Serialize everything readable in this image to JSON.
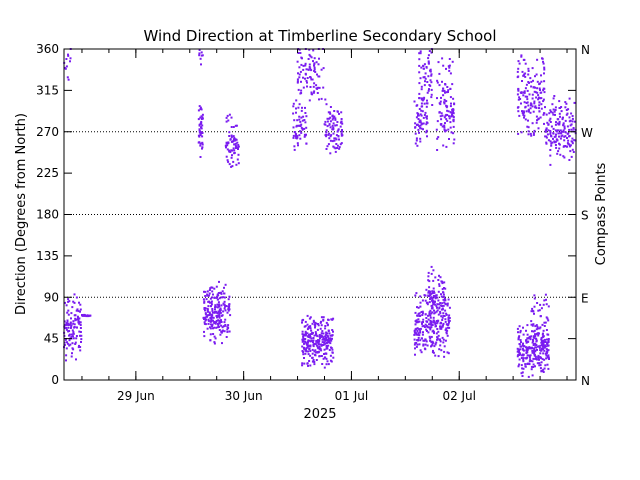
{
  "chart_data": {
    "type": "scatter",
    "title": "Wind Direction at Timberline Secondary School",
    "ylabel": "Direction (Degrees from North)",
    "xlabel": "2025",
    "y2label": "Compass Points",
    "ylim": [
      0,
      360
    ],
    "yticks": [
      0,
      45,
      90,
      135,
      180,
      225,
      270,
      315,
      360
    ],
    "compass_points": [
      {
        "label": "N",
        "value": 0
      },
      {
        "label": "E",
        "value": 90
      },
      {
        "label": "S",
        "value": 180
      },
      {
        "label": "W",
        "value": 270
      },
      {
        "label": "N",
        "value": 360
      }
    ],
    "reference_lines": [
      90,
      180,
      270
    ],
    "xlim": [
      "2025-06-28 08:00",
      "2025-07-03 02:00"
    ],
    "xticks": [
      {
        "label": "29 Jun",
        "value": "2025-06-29 00:00"
      },
      {
        "label": "30 Jun",
        "value": "2025-06-30 00:00"
      },
      {
        "label": "01 Jul",
        "value": "2025-07-01 00:00"
      },
      {
        "label": "02 Jul",
        "value": "2025-07-02 00:00"
      }
    ],
    "marker_color": "#7a1cf0",
    "clusters": [
      {
        "start": "2025-06-28 08:00",
        "end": "2025-06-28 12:00",
        "center": 58,
        "spread": 28,
        "n": 120
      },
      {
        "start": "2025-06-28 08:00",
        "end": "2025-06-28 09:30",
        "center": 345,
        "spread": 18,
        "n": 12
      },
      {
        "start": "2025-06-28 12:00",
        "end": "2025-06-28 14:00",
        "center": 70,
        "spread": 1,
        "n": 14
      },
      {
        "start": "2025-06-29 14:00",
        "end": "2025-06-29 15:00",
        "center": 270,
        "spread": 22,
        "n": 45
      },
      {
        "start": "2025-06-29 14:00",
        "end": "2025-06-29 15:00",
        "center": 352,
        "spread": 8,
        "n": 8
      },
      {
        "start": "2025-06-29 15:00",
        "end": "2025-06-29 21:00",
        "center": 72,
        "spread": 25,
        "n": 220
      },
      {
        "start": "2025-06-29 20:00",
        "end": "2025-06-29 23:00",
        "center": 258,
        "spread": 22,
        "n": 70
      },
      {
        "start": "2025-06-30 11:00",
        "end": "2025-06-30 14:00",
        "center": 278,
        "spread": 22,
        "n": 60
      },
      {
        "start": "2025-06-30 12:00",
        "end": "2025-06-30 18:00",
        "center": 330,
        "spread": 28,
        "n": 90
      },
      {
        "start": "2025-06-30 13:00",
        "end": "2025-06-30 20:00",
        "center": 42,
        "spread": 22,
        "n": 280
      },
      {
        "start": "2025-06-30 18:00",
        "end": "2025-06-30 22:00",
        "center": 275,
        "spread": 22,
        "n": 90
      },
      {
        "start": "2025-07-01 14:00",
        "end": "2025-07-01 17:00",
        "center": 280,
        "spread": 22,
        "n": 60
      },
      {
        "start": "2025-07-01 15:00",
        "end": "2025-07-01 18:00",
        "center": 330,
        "spread": 25,
        "n": 60
      },
      {
        "start": "2025-07-01 14:00",
        "end": "2025-07-01 22:00",
        "center": 60,
        "spread": 28,
        "n": 260
      },
      {
        "start": "2025-07-01 17:00",
        "end": "2025-07-01 21:00",
        "center": 95,
        "spread": 22,
        "n": 80
      },
      {
        "start": "2025-07-01 19:00",
        "end": "2025-07-01 23:00",
        "center": 300,
        "spread": 40,
        "n": 110
      },
      {
        "start": "2025-07-02 13:00",
        "end": "2025-07-02 20:00",
        "center": 32,
        "spread": 22,
        "n": 260
      },
      {
        "start": "2025-07-02 13:00",
        "end": "2025-07-02 19:00",
        "center": 310,
        "spread": 35,
        "n": 160
      },
      {
        "start": "2025-07-02 19:00",
        "end": "2025-07-03 02:00",
        "center": 272,
        "spread": 28,
        "n": 170
      },
      {
        "start": "2025-07-02 16:00",
        "end": "2025-07-02 20:00",
        "center": 70,
        "spread": 20,
        "n": 40
      }
    ]
  }
}
